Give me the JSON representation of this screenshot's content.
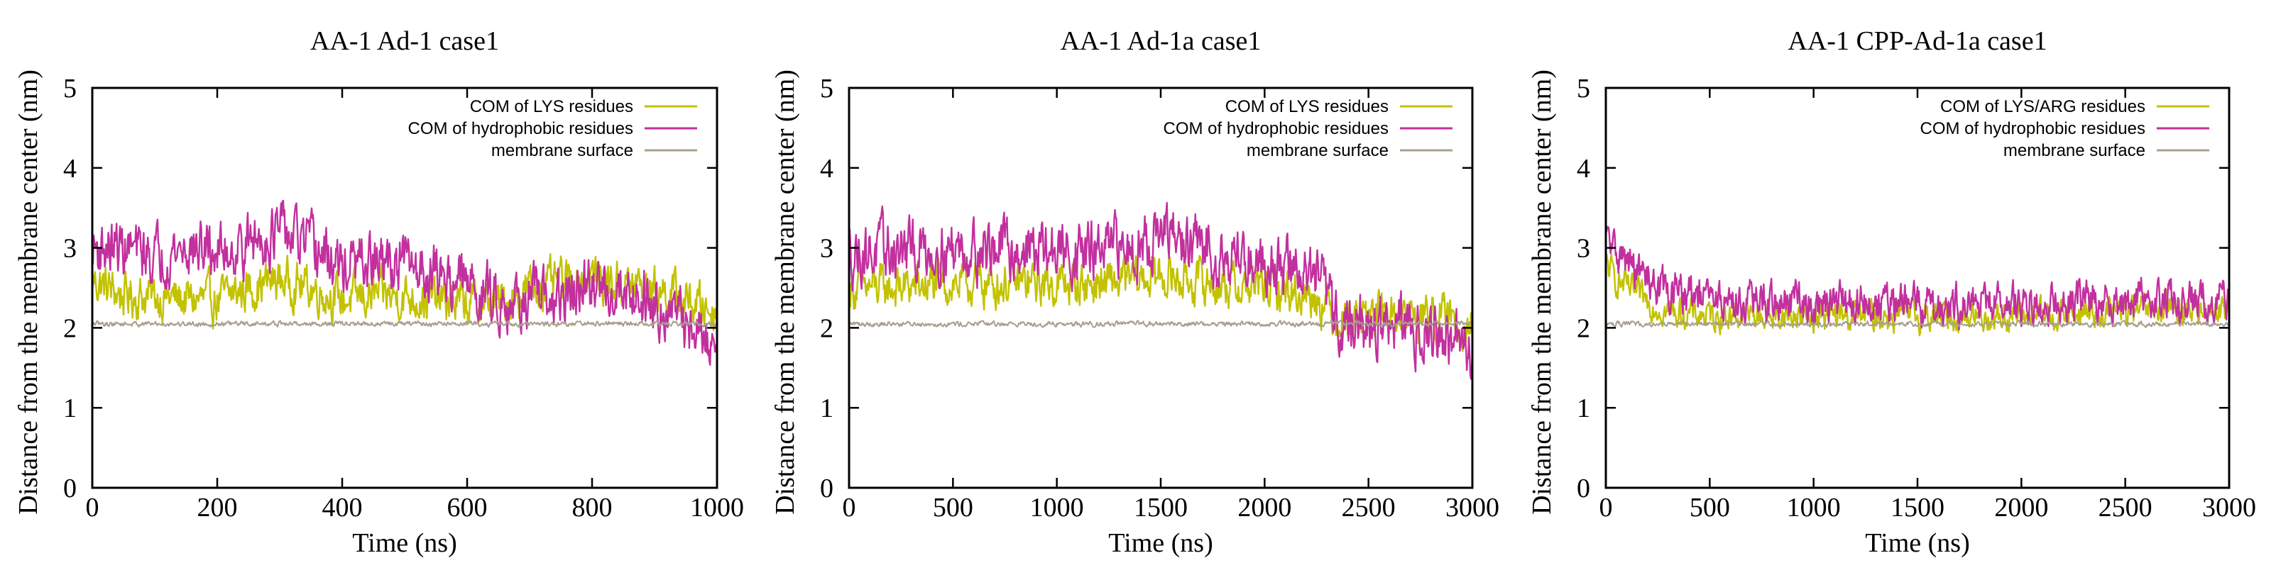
{
  "colors": {
    "lys": "#c2c200",
    "hydrophobic": "#c2309e",
    "membrane": "#a8a08e",
    "axis": "#000000"
  },
  "chart_data": [
    {
      "type": "line",
      "title": "AA-1 Ad-1 case1",
      "xlabel": "Time (ns)",
      "ylabel": "Distance from the membrane center (nm)",
      "xlim": [
        0,
        1000
      ],
      "ylim": [
        0,
        5
      ],
      "xticks": [
        0,
        200,
        400,
        600,
        800,
        1000
      ],
      "yticks": [
        0,
        1,
        2,
        3,
        4,
        5
      ],
      "legend_position": "top-right",
      "series": [
        {
          "name": "COM of LYS residues",
          "key": "lys",
          "noise": 0.22,
          "x": [
            0,
            50,
            100,
            150,
            200,
            250,
            300,
            350,
            400,
            450,
            500,
            550,
            600,
            650,
            700,
            750,
            800,
            850,
            900,
            950,
            1000
          ],
          "y": [
            2.6,
            2.4,
            2.4,
            2.35,
            2.35,
            2.5,
            2.6,
            2.5,
            2.35,
            2.4,
            2.4,
            2.35,
            2.3,
            2.3,
            2.5,
            2.55,
            2.65,
            2.55,
            2.5,
            2.35,
            2.2
          ]
        },
        {
          "name": "COM of hydrophobic residues",
          "key": "hydrophobic",
          "noise": 0.28,
          "x": [
            0,
            50,
            100,
            150,
            200,
            250,
            300,
            350,
            400,
            450,
            500,
            550,
            600,
            650,
            700,
            750,
            800,
            850,
            900,
            950,
            1000
          ],
          "y": [
            3.0,
            3.0,
            2.9,
            3.0,
            2.95,
            3.05,
            3.2,
            3.0,
            2.75,
            2.8,
            2.8,
            2.7,
            2.55,
            2.35,
            2.35,
            2.35,
            2.5,
            2.5,
            2.35,
            2.05,
            1.75
          ]
        },
        {
          "name": "membrane surface",
          "key": "membrane",
          "noise": 0.025,
          "x": [
            0,
            1000
          ],
          "y": [
            2.05,
            2.05
          ]
        }
      ]
    },
    {
      "type": "line",
      "title": "AA-1 Ad-1a case1",
      "xlabel": "Time (ns)",
      "ylabel": "Distance from the membrane center (nm)",
      "xlim": [
        0,
        3000
      ],
      "ylim": [
        0,
        5
      ],
      "xticks": [
        0,
        500,
        1000,
        1500,
        2000,
        2500,
        3000
      ],
      "yticks": [
        0,
        1,
        2,
        3,
        4,
        5
      ],
      "legend_position": "top-right",
      "series": [
        {
          "name": "COM of LYS residues",
          "key": "lys",
          "noise": 0.22,
          "x": [
            0,
            250,
            500,
            750,
            1000,
            1250,
            1500,
            1750,
            2000,
            2250,
            2350,
            2500,
            2750,
            3000
          ],
          "y": [
            2.5,
            2.5,
            2.55,
            2.55,
            2.55,
            2.55,
            2.65,
            2.55,
            2.5,
            2.4,
            2.15,
            2.15,
            2.15,
            2.05
          ]
        },
        {
          "name": "COM of hydrophobic residues",
          "key": "hydrophobic",
          "noise": 0.3,
          "x": [
            0,
            250,
            500,
            750,
            1000,
            1250,
            1500,
            1750,
            2000,
            2250,
            2350,
            2500,
            2750,
            3000
          ],
          "y": [
            2.95,
            2.95,
            3.0,
            3.0,
            2.95,
            2.95,
            3.15,
            2.95,
            2.85,
            2.65,
            2.1,
            2.0,
            2.0,
            1.7
          ]
        },
        {
          "name": "membrane surface",
          "key": "membrane",
          "noise": 0.025,
          "x": [
            0,
            3000
          ],
          "y": [
            2.05,
            2.05
          ]
        }
      ]
    },
    {
      "type": "line",
      "title": "AA-1 CPP-Ad-1a case1",
      "xlabel": "Time (ns)",
      "ylabel": "Distance from the membrane center (nm)",
      "xlim": [
        0,
        3000
      ],
      "ylim": [
        0,
        5
      ],
      "xticks": [
        0,
        500,
        1000,
        1500,
        2000,
        2500,
        3000
      ],
      "yticks": [
        0,
        1,
        2,
        3,
        4,
        5
      ],
      "legend_position": "top-right",
      "series": [
        {
          "name": "COM of LYS/ARG residues",
          "key": "lys",
          "noise": 0.15,
          "x": [
            0,
            50,
            150,
            300,
            500,
            1000,
            1500,
            2000,
            2500,
            3000
          ],
          "y": [
            2.8,
            2.6,
            2.4,
            2.2,
            2.15,
            2.15,
            2.15,
            2.15,
            2.2,
            2.25
          ]
        },
        {
          "name": "COM of hydrophobic residues",
          "key": "hydrophobic",
          "noise": 0.2,
          "x": [
            0,
            50,
            150,
            300,
            500,
            1000,
            1500,
            2000,
            2500,
            3000
          ],
          "y": [
            3.1,
            2.95,
            2.7,
            2.45,
            2.35,
            2.3,
            2.3,
            2.3,
            2.35,
            2.35
          ]
        },
        {
          "name": "membrane surface",
          "key": "membrane",
          "noise": 0.025,
          "x": [
            0,
            3000
          ],
          "y": [
            2.05,
            2.05
          ]
        }
      ]
    }
  ]
}
